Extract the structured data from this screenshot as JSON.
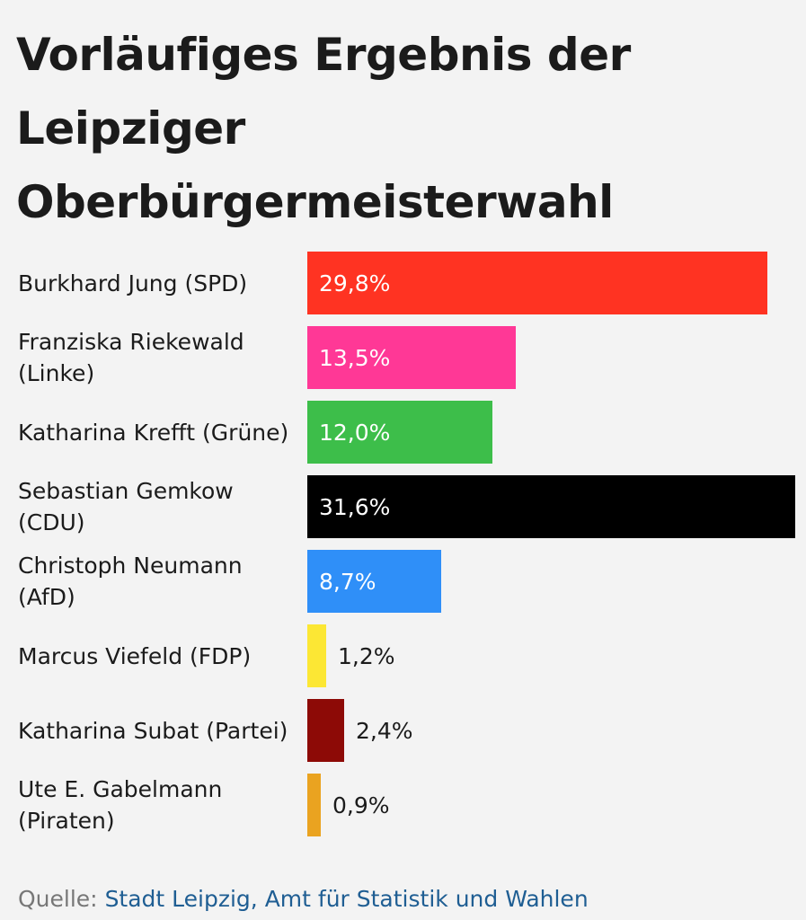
{
  "title": "Vorläufiges Ergebnis der Leipziger Oberbürgermeisterwahl",
  "source": {
    "label": "Quelle:",
    "link_text": "Stadt Leipzig, Amt für Statistik und Wahlen"
  },
  "chart_data": {
    "type": "bar",
    "orientation": "horizontal",
    "title": "Vorläufiges Ergebnis der Leipziger Oberbürgermeisterwahl",
    "xlabel": "",
    "ylabel": "",
    "xlim": [
      0,
      31.6
    ],
    "grid": false,
    "unit": "%",
    "categories": [
      "Burkhard Jung (SPD)",
      "Franziska Riekewald (Linke)",
      "Katharina Krefft (Grüne)",
      "Sebastian Gemkow (CDU)",
      "Christoph Neumann (AfD)",
      "Marcus Viefeld (FDP)",
      "Katharina Subat (Partei)",
      "Ute E. Gabelmann (Piraten)"
    ],
    "values": [
      29.8,
      13.5,
      12.0,
      31.6,
      8.7,
      1.2,
      2.4,
      0.9
    ],
    "value_labels": [
      "29,8%",
      "13,5%",
      "12,0%",
      "31,6%",
      "8,7%",
      "1,2%",
      "2,4%",
      "0,9%"
    ],
    "colors": [
      "#ff3322",
      "#ff3896",
      "#3dbe4a",
      "#000000",
      "#2f8ff8",
      "#fce734",
      "#8d0a06",
      "#eaa320"
    ]
  }
}
